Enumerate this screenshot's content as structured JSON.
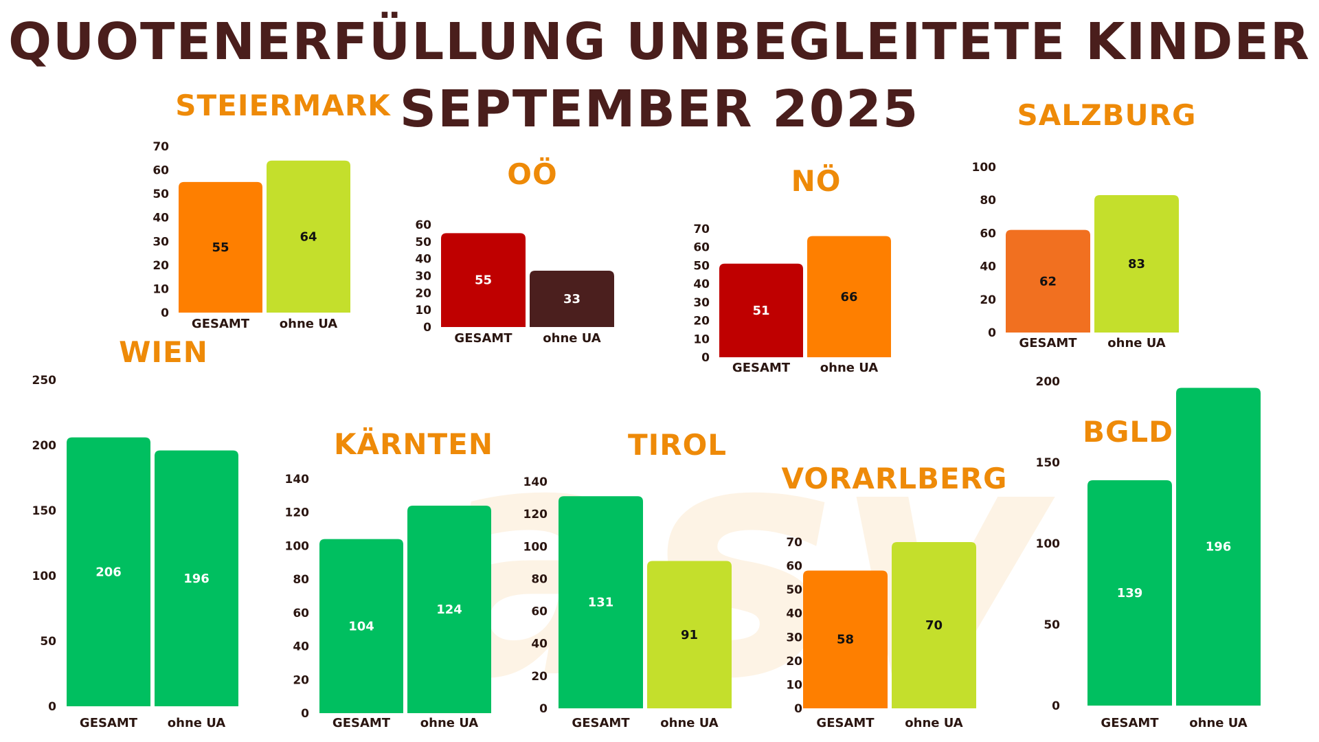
{
  "title": {
    "line1": "QUOTENERFÜLLUNG UNBEGLEITETE KINDER",
    "line2": "SEPTEMBER 2025"
  },
  "watermark": "asv",
  "chart_data": [
    {
      "id": "steiermark",
      "type": "bar",
      "title": "STEIERMARK",
      "categories": [
        "GESAMT",
        "ohne UA"
      ],
      "values": [
        55,
        64
      ],
      "colors": [
        "#fe7f00",
        "#c4df2c"
      ],
      "ylim": [
        0,
        70
      ],
      "ticks": [
        0,
        10,
        20,
        30,
        40,
        50,
        60,
        70
      ]
    },
    {
      "id": "ooe",
      "type": "bar",
      "title": "OÖ",
      "categories": [
        "GESAMT",
        "ohne UA"
      ],
      "values": [
        55,
        33
      ],
      "colors": [
        "#bf0000",
        "#4b1f1e"
      ],
      "ylim": [
        0,
        60
      ],
      "ticks": [
        0,
        10,
        20,
        30,
        40,
        50,
        60
      ]
    },
    {
      "id": "noe",
      "type": "bar",
      "title": "NÖ",
      "categories": [
        "GESAMT",
        "ohne UA"
      ],
      "values": [
        51,
        66
      ],
      "colors": [
        "#bf0000",
        "#fe7f00"
      ],
      "ylim": [
        0,
        70
      ],
      "ticks": [
        0,
        10,
        20,
        30,
        40,
        50,
        60,
        70
      ]
    },
    {
      "id": "salzburg",
      "type": "bar",
      "title": "SALZBURG",
      "categories": [
        "GESAMT",
        "ohne UA"
      ],
      "values": [
        62,
        83
      ],
      "colors": [
        "#f17020",
        "#c4df2c"
      ],
      "ylim": [
        0,
        100
      ],
      "ticks": [
        0,
        20,
        40,
        60,
        80,
        100
      ]
    },
    {
      "id": "wien",
      "type": "bar",
      "title": "WIEN",
      "categories": [
        "GESAMT",
        "ohne UA"
      ],
      "values": [
        206,
        196
      ],
      "colors": [
        "#00bf60",
        "#00bf60"
      ],
      "ylim": [
        0,
        250
      ],
      "ticks": [
        0,
        50,
        100,
        150,
        200,
        250
      ]
    },
    {
      "id": "kaernten",
      "type": "bar",
      "title": "KÄRNTEN",
      "categories": [
        "GESAMT",
        "ohne UA"
      ],
      "values": [
        104,
        124
      ],
      "colors": [
        "#00bf60",
        "#00bf60"
      ],
      "ylim": [
        0,
        140
      ],
      "ticks": [
        0,
        20,
        40,
        60,
        80,
        100,
        120,
        140
      ]
    },
    {
      "id": "tirol",
      "type": "bar",
      "title": "TIROL",
      "categories": [
        "GESAMT",
        "ohne UA"
      ],
      "values": [
        131,
        91
      ],
      "colors": [
        "#00bf60",
        "#c4df2c"
      ],
      "ylim": [
        0,
        140
      ],
      "ticks": [
        0,
        20,
        40,
        60,
        80,
        100,
        120,
        140
      ]
    },
    {
      "id": "vorarlberg",
      "type": "bar",
      "title": "VORARLBERG",
      "categories": [
        "GESAMT",
        "ohne UA"
      ],
      "values": [
        58,
        70
      ],
      "colors": [
        "#fe7f00",
        "#c4df2c"
      ],
      "ylim": [
        0,
        70
      ],
      "ticks": [
        0,
        10,
        20,
        30,
        40,
        50,
        60,
        70
      ]
    },
    {
      "id": "bgld",
      "type": "bar",
      "title": "BGLD",
      "categories": [
        "GESAMT",
        "ohne UA"
      ],
      "values": [
        139,
        196
      ],
      "colors": [
        "#00bf60",
        "#00bf60"
      ],
      "ylim": [
        0,
        200
      ],
      "ticks": [
        0,
        50,
        100,
        150,
        200
      ]
    }
  ]
}
